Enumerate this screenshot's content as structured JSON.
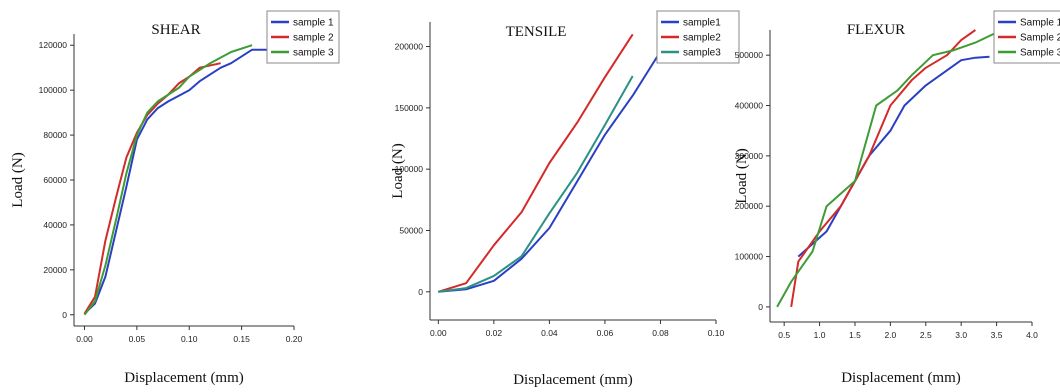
{
  "chart_data": [
    {
      "type": "line",
      "title": "SHEAR",
      "xlabel": "Displacement (mm)",
      "ylabel": "Load (N)",
      "xlim": [
        -0.01,
        0.2
      ],
      "ylim": [
        -5000,
        125000
      ],
      "xticks": [
        0.0,
        0.05,
        0.1,
        0.15,
        0.2
      ],
      "xtick_labels": [
        "0.00",
        "0.05",
        "0.10",
        "0.15",
        "0.20"
      ],
      "yticks": [
        0,
        20000,
        40000,
        60000,
        80000,
        100000,
        120000
      ],
      "ytick_labels": [
        "0",
        "20000",
        "40000",
        "60000",
        "80000",
        "100000",
        "120000"
      ],
      "legend_position": "top-right",
      "series": [
        {
          "name": "sample 1",
          "color": "#2b3fc4",
          "x": [
            0.0,
            0.01,
            0.02,
            0.03,
            0.04,
            0.05,
            0.06,
            0.07,
            0.08,
            0.1,
            0.11,
            0.13,
            0.14,
            0.16,
            0.18,
            0.19
          ],
          "y": [
            500,
            5000,
            17000,
            37000,
            57000,
            78000,
            87000,
            92000,
            95000,
            100000,
            104000,
            110000,
            112000,
            118000,
            118000,
            115000
          ]
        },
        {
          "name": "sample 2",
          "color": "#d42a2a",
          "x": [
            0.0,
            0.01,
            0.02,
            0.03,
            0.04,
            0.05,
            0.06,
            0.07,
            0.08,
            0.09,
            0.1,
            0.11,
            0.13
          ],
          "y": [
            500,
            8000,
            33000,
            52000,
            70000,
            81000,
            89000,
            94000,
            98000,
            103000,
            106000,
            110000,
            112000
          ]
        },
        {
          "name": "sample 3",
          "color": "#3e9c35",
          "x": [
            0.0,
            0.01,
            0.02,
            0.03,
            0.04,
            0.05,
            0.06,
            0.07,
            0.08,
            0.09,
            0.1,
            0.12,
            0.14,
            0.16
          ],
          "y": [
            0,
            6000,
            22000,
            42000,
            63000,
            80000,
            90000,
            95000,
            98000,
            101000,
            106000,
            112000,
            117000,
            120000
          ]
        }
      ]
    },
    {
      "type": "line",
      "title": "TENSILE",
      "xlabel": "Displacement (mm)",
      "ylabel": "Load (N)",
      "xlim": [
        -0.003,
        0.1
      ],
      "ylim": [
        -23000,
        220000
      ],
      "xticks": [
        0.0,
        0.02,
        0.04,
        0.06,
        0.08,
        0.1
      ],
      "xtick_labels": [
        "0.00",
        "0.02",
        "0.04",
        "0.06",
        "0.08",
        "0.10"
      ],
      "yticks": [
        0,
        50000,
        100000,
        150000,
        200000
      ],
      "ytick_labels": [
        "0",
        "50000",
        "100000",
        "150000",
        "200000"
      ],
      "legend_position": "top-right",
      "series": [
        {
          "name": "sample1",
          "color": "#2b3fc4",
          "x": [
            0.0,
            0.01,
            0.02,
            0.03,
            0.04,
            0.05,
            0.06,
            0.07,
            0.08
          ],
          "y": [
            0,
            2000,
            9000,
            27000,
            52000,
            90000,
            128000,
            160000,
            196000
          ]
        },
        {
          "name": "sample2",
          "color": "#d42a2a",
          "x": [
            0.0,
            0.01,
            0.02,
            0.03,
            0.04,
            0.05,
            0.06,
            0.07
          ],
          "y": [
            0,
            7000,
            38000,
            65000,
            105000,
            138000,
            175000,
            210000
          ]
        },
        {
          "name": "sample3",
          "color": "#2a9187",
          "x": [
            0.0,
            0.01,
            0.02,
            0.03,
            0.04,
            0.05,
            0.06,
            0.07
          ],
          "y": [
            0,
            3000,
            13000,
            29000,
            64000,
            97000,
            136000,
            176000
          ]
        }
      ]
    },
    {
      "type": "line",
      "title": "FLEXUR",
      "xlabel": "Displacement (mm)",
      "ylabel": "Load (N)",
      "xlim": [
        0.3,
        4.0
      ],
      "ylim": [
        -30000,
        550000
      ],
      "xticks": [
        0.5,
        1.0,
        1.5,
        2.0,
        2.5,
        3.0,
        3.5,
        4.0
      ],
      "xtick_labels": [
        "0.5",
        "1.0",
        "1.5",
        "2.0",
        "2.5",
        "3.0",
        "3.5",
        "4.0"
      ],
      "yticks": [
        0,
        100000,
        200000,
        300000,
        400000,
        500000
      ],
      "ytick_labels": [
        "0",
        "100000",
        "200000",
        "300000",
        "400000",
        "500000"
      ],
      "legend_position": "top-right",
      "series": [
        {
          "name": "Sample 1",
          "color": "#2b3fc4",
          "x": [
            0.7,
            1.1,
            1.3,
            1.7,
            2.0,
            2.2,
            2.5,
            2.8,
            3.0,
            3.2,
            3.4
          ],
          "y": [
            100000,
            150000,
            200000,
            300000,
            350000,
            400000,
            440000,
            470000,
            490000,
            495000,
            497000
          ]
        },
        {
          "name": "Sample 2",
          "color": "#d42a2a",
          "x": [
            0.6,
            0.7,
            1.0,
            1.3,
            1.7,
            2.0,
            2.3,
            2.5,
            2.8,
            3.0,
            3.2
          ],
          "y": [
            0,
            90000,
            150000,
            200000,
            300000,
            400000,
            450000,
            475000,
            500000,
            530000,
            550000
          ]
        },
        {
          "name": "Sample 3",
          "color": "#3e9c35",
          "x": [
            0.4,
            0.6,
            0.9,
            1.1,
            1.5,
            1.8,
            2.1,
            2.3,
            2.6,
            2.9,
            3.2,
            3.5
          ],
          "y": [
            0,
            50000,
            110000,
            200000,
            250000,
            400000,
            430000,
            460000,
            500000,
            510000,
            525000,
            545000
          ]
        }
      ]
    }
  ]
}
